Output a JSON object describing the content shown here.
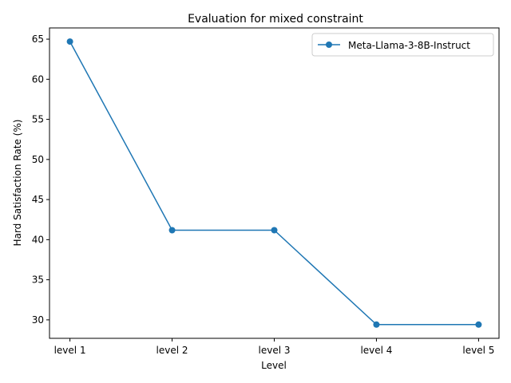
{
  "chart_data": {
    "type": "line",
    "title": "Evaluation for mixed constraint",
    "xlabel": "Level",
    "ylabel": "Hard Satisfaction Rate (%)",
    "categories": [
      "level 1",
      "level 2",
      "level 3",
      "level 4",
      "level 5"
    ],
    "series": [
      {
        "name": "Meta-Llama-3-8B-Instruct",
        "values": [
          64.7,
          41.18,
          41.18,
          29.41,
          29.41
        ],
        "color": "#1f77b4",
        "marker": "circle"
      }
    ],
    "ylim": [
      27.7,
      66.4
    ],
    "yticks": [
      30,
      35,
      40,
      45,
      50,
      55,
      60,
      65
    ],
    "grid": false,
    "legend": "top-right"
  }
}
